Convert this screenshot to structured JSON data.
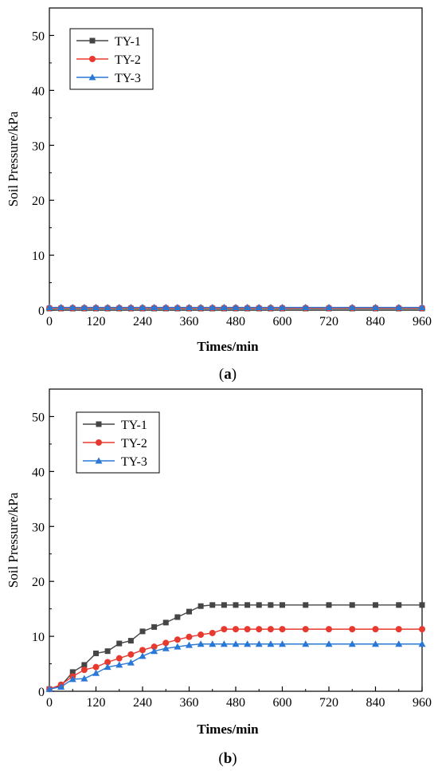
{
  "chart_data": [
    {
      "type": "line",
      "caption_letter": "a",
      "xlabel": "Times/min",
      "ylabel": "Soil Pressure/kPa",
      "xlim": [
        0,
        960
      ],
      "ylim": [
        0,
        55
      ],
      "xticks": [
        0,
        120,
        240,
        360,
        480,
        600,
        720,
        840,
        960
      ],
      "yticks": [
        0,
        10,
        20,
        30,
        40,
        50
      ],
      "legend_position": "top-left",
      "grid": false,
      "x": [
        0,
        30,
        60,
        90,
        120,
        150,
        180,
        210,
        240,
        270,
        300,
        330,
        360,
        390,
        420,
        450,
        480,
        510,
        540,
        570,
        600,
        660,
        720,
        780,
        840,
        900,
        960
      ],
      "series": [
        {
          "name": "TY-1",
          "color": "#454545",
          "marker": "square",
          "values": [
            0.3,
            0.3,
            0.3,
            0.3,
            0.3,
            0.3,
            0.3,
            0.3,
            0.3,
            0.3,
            0.3,
            0.3,
            0.3,
            0.3,
            0.3,
            0.3,
            0.3,
            0.3,
            0.3,
            0.3,
            0.3,
            0.3,
            0.3,
            0.3,
            0.3,
            0.3,
            0.3
          ]
        },
        {
          "name": "TY-2",
          "color": "#e8392f",
          "marker": "circle",
          "values": [
            0.4,
            0.4,
            0.4,
            0.4,
            0.4,
            0.4,
            0.4,
            0.4,
            0.4,
            0.4,
            0.4,
            0.4,
            0.4,
            0.4,
            0.4,
            0.4,
            0.4,
            0.4,
            0.4,
            0.4,
            0.4,
            0.4,
            0.4,
            0.4,
            0.4,
            0.4,
            0.4
          ]
        },
        {
          "name": "TY-3",
          "color": "#2a78d6",
          "marker": "triangle",
          "values": [
            0.5,
            0.5,
            0.5,
            0.5,
            0.5,
            0.5,
            0.5,
            0.5,
            0.5,
            0.5,
            0.5,
            0.5,
            0.5,
            0.5,
            0.5,
            0.5,
            0.5,
            0.5,
            0.5,
            0.5,
            0.5,
            0.5,
            0.5,
            0.5,
            0.5,
            0.5,
            0.5
          ]
        }
      ]
    },
    {
      "type": "line",
      "caption_letter": "b",
      "xlabel": "Times/min",
      "ylabel": "Soil Pressure/kPa",
      "xlim": [
        0,
        960
      ],
      "ylim": [
        0,
        55
      ],
      "xticks": [
        0,
        120,
        240,
        360,
        480,
        600,
        720,
        840,
        960
      ],
      "yticks": [
        0,
        10,
        20,
        30,
        40,
        50
      ],
      "legend_position": "top-left",
      "grid": false,
      "x": [
        0,
        30,
        60,
        90,
        120,
        150,
        180,
        210,
        240,
        270,
        300,
        330,
        360,
        390,
        420,
        450,
        480,
        510,
        540,
        570,
        600,
        660,
        720,
        780,
        840,
        900,
        960
      ],
      "series": [
        {
          "name": "TY-1",
          "color": "#454545",
          "marker": "square",
          "values": [
            0.4,
            1.0,
            3.5,
            4.8,
            6.9,
            7.3,
            8.7,
            9.2,
            10.9,
            11.7,
            12.5,
            13.5,
            14.5,
            15.5,
            15.7,
            15.7,
            15.7,
            15.7,
            15.7,
            15.7,
            15.7,
            15.7,
            15.7,
            15.7,
            15.7,
            15.7,
            15.7
          ]
        },
        {
          "name": "TY-2",
          "color": "#e8392f",
          "marker": "circle",
          "values": [
            0.4,
            1.2,
            2.7,
            3.9,
            4.4,
            5.3,
            6.0,
            6.7,
            7.5,
            8.1,
            8.8,
            9.4,
            9.9,
            10.3,
            10.6,
            11.3,
            11.3,
            11.3,
            11.3,
            11.3,
            11.3,
            11.3,
            11.3,
            11.3,
            11.3,
            11.3,
            11.3
          ]
        },
        {
          "name": "TY-3",
          "color": "#2a78d6",
          "marker": "triangle",
          "values": [
            0.4,
            0.8,
            2.2,
            2.3,
            3.3,
            4.4,
            4.8,
            5.2,
            6.4,
            7.3,
            7.8,
            8.1,
            8.4,
            8.6,
            8.6,
            8.6,
            8.6,
            8.6,
            8.6,
            8.6,
            8.6,
            8.6,
            8.6,
            8.6,
            8.6,
            8.6,
            8.6
          ]
        }
      ]
    }
  ]
}
